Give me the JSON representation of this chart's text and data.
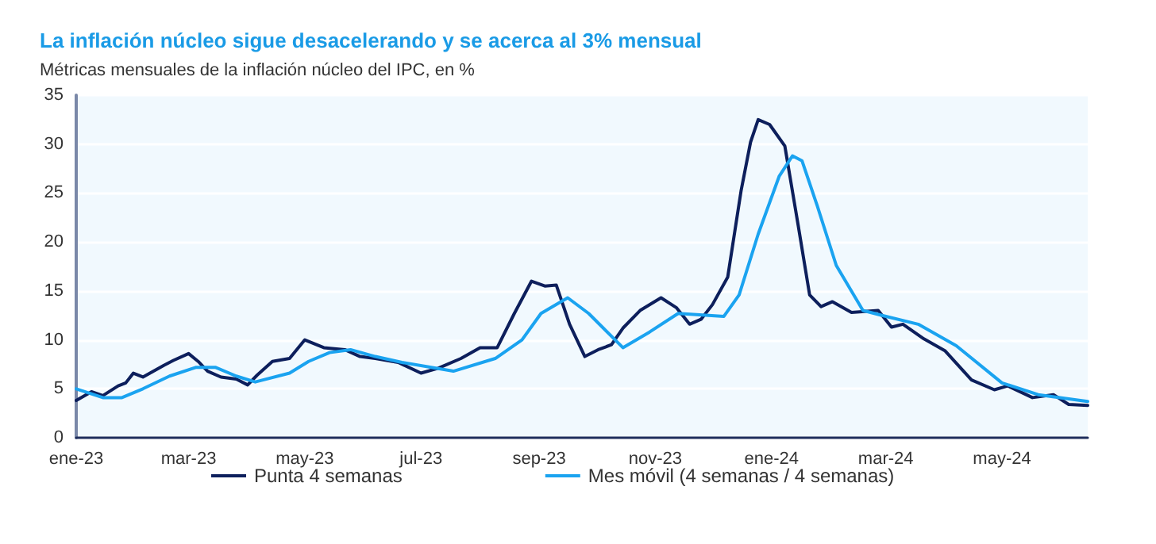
{
  "chart_data": {
    "type": "line",
    "title": "La inflación núcleo sigue desacelerando y se acerca al 3% mensual",
    "subtitle": "Métricas mensuales de la inflación núcleo del IPC, en %",
    "xlim": [
      "2023-01-01",
      "2024-06-15"
    ],
    "xticks": [
      {
        "value": "2023-01-01",
        "label": "ene-23"
      },
      {
        "value": "2023-03-01",
        "label": "mar-23"
      },
      {
        "value": "2023-05-01",
        "label": "may-23"
      },
      {
        "value": "2023-07-01",
        "label": "jul-23"
      },
      {
        "value": "2023-09-01",
        "label": "sep-23"
      },
      {
        "value": "2023-11-01",
        "label": "nov-23"
      },
      {
        "value": "2024-01-01",
        "label": "ene-24"
      },
      {
        "value": "2024-03-01",
        "label": "mar-24"
      },
      {
        "value": "2024-05-01",
        "label": "may-24"
      }
    ],
    "ylim": [
      0,
      35
    ],
    "yticks": [
      0,
      5,
      10,
      15,
      20,
      25,
      30,
      35
    ],
    "grid": "y",
    "legend": "bottom",
    "marker": "none",
    "line_style": "solid",
    "series": [
      {
        "name": "Punta 4 semanas",
        "color": "#0d1f5c",
        "x": [
          "2023-01-01",
          "2023-01-09",
          "2023-01-15",
          "2023-01-23",
          "2023-01-27",
          "2023-01-31",
          "2023-02-05",
          "2023-02-16",
          "2023-02-21",
          "2023-03-01",
          "2023-03-06",
          "2023-03-11",
          "2023-03-18",
          "2023-03-26",
          "2023-04-01",
          "2023-04-06",
          "2023-04-14",
          "2023-04-23",
          "2023-05-01",
          "2023-05-11",
          "2023-05-22",
          "2023-05-30",
          "2023-06-07",
          "2023-06-19",
          "2023-07-01",
          "2023-07-10",
          "2023-07-22",
          "2023-08-01",
          "2023-08-10",
          "2023-08-19",
          "2023-08-28",
          "2023-09-04",
          "2023-09-10",
          "2023-09-17",
          "2023-09-25",
          "2023-10-02",
          "2023-10-09",
          "2023-10-15",
          "2023-10-24",
          "2023-11-04",
          "2023-11-12",
          "2023-11-19",
          "2023-11-25",
          "2023-12-01",
          "2023-12-09",
          "2023-12-16",
          "2023-12-21",
          "2023-12-25",
          "2023-12-31",
          "2024-01-08",
          "2024-01-15",
          "2024-01-21",
          "2024-01-27",
          "2024-02-02",
          "2024-02-12",
          "2024-02-26",
          "2024-03-04",
          "2024-03-10",
          "2024-03-21",
          "2024-04-01",
          "2024-04-15",
          "2024-04-27",
          "2024-05-04",
          "2024-05-17",
          "2024-05-28",
          "2024-06-05",
          "2024-06-15"
        ],
        "values": [
          3.8,
          4.7,
          4.3,
          5.3,
          5.6,
          6.6,
          6.2,
          7.4,
          7.9,
          8.6,
          7.8,
          6.8,
          6.2,
          6.0,
          5.4,
          6.4,
          7.8,
          8.1,
          10.0,
          9.2,
          9.0,
          8.3,
          8.1,
          7.7,
          6.6,
          7.1,
          8.1,
          9.2,
          9.2,
          12.7,
          16.0,
          15.5,
          15.6,
          11.6,
          8.3,
          9.0,
          9.5,
          11.2,
          13.0,
          14.3,
          13.3,
          11.6,
          12.1,
          13.6,
          16.4,
          25.2,
          30.2,
          32.5,
          32.0,
          29.8,
          21.7,
          14.6,
          13.4,
          13.9,
          12.8,
          13.0,
          11.3,
          11.6,
          10.1,
          8.9,
          5.9,
          4.9,
          5.3,
          4.1,
          4.4,
          3.4,
          3.3
        ]
      },
      {
        "name": "Mes móvil (4 semanas / 4 semanas)",
        "color": "#1aa3f0",
        "x": [
          "2023-01-01",
          "2023-01-15",
          "2023-01-25",
          "2023-02-05",
          "2023-02-19",
          "2023-03-05",
          "2023-03-15",
          "2023-03-26",
          "2023-04-05",
          "2023-04-23",
          "2023-05-03",
          "2023-05-14",
          "2023-05-25",
          "2023-06-07",
          "2023-06-21",
          "2023-07-18",
          "2023-08-09",
          "2023-08-23",
          "2023-09-02",
          "2023-09-16",
          "2023-09-27",
          "2023-10-15",
          "2023-10-29",
          "2023-11-13",
          "2023-12-07",
          "2023-12-15",
          "2023-12-25",
          "2024-01-05",
          "2024-01-12",
          "2024-01-17",
          "2024-01-25",
          "2024-02-04",
          "2024-02-18",
          "2024-02-28",
          "2024-03-18",
          "2024-04-07",
          "2024-05-01",
          "2024-05-20",
          "2024-06-15"
        ],
        "values": [
          5.0,
          4.1,
          4.1,
          5.0,
          6.3,
          7.2,
          7.2,
          6.3,
          5.7,
          6.6,
          7.8,
          8.7,
          9.0,
          8.3,
          7.7,
          6.8,
          8.1,
          10.0,
          12.7,
          14.3,
          12.7,
          9.2,
          10.8,
          12.7,
          12.4,
          14.6,
          20.8,
          26.7,
          28.8,
          28.3,
          23.7,
          17.6,
          13.0,
          12.5,
          11.6,
          9.4,
          5.6,
          4.4,
          3.7
        ]
      }
    ]
  }
}
